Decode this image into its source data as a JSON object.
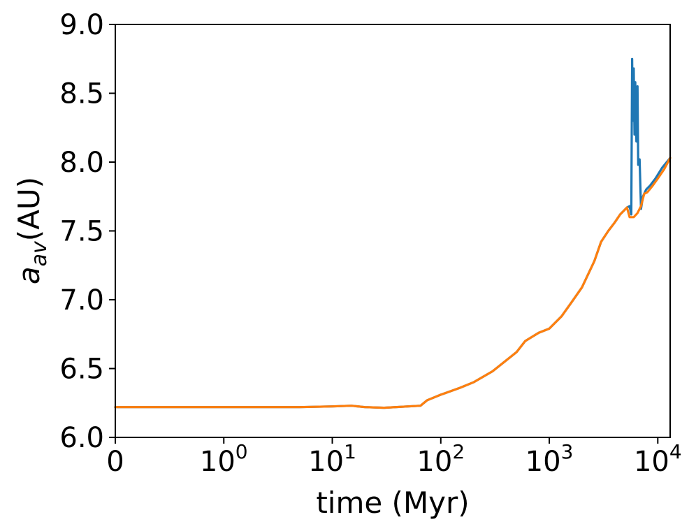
{
  "chart_data": {
    "type": "line",
    "title": "",
    "xlabel": "time (Myr)",
    "ylabel": "a",
    "ylabel_sub": "av",
    "ylabel_unit": "(AU)",
    "x_scale": "symlog",
    "xlim": [
      0,
      13000
    ],
    "ylim": [
      6.0,
      9.0
    ],
    "grid": false,
    "legend": "none",
    "x_ticks": [
      {
        "value": 0,
        "label": "0"
      },
      {
        "value": 1,
        "base": "10",
        "exp": "0"
      },
      {
        "value": 10,
        "base": "10",
        "exp": "1"
      },
      {
        "value": 100,
        "base": "10",
        "exp": "2"
      },
      {
        "value": 1000,
        "base": "10",
        "exp": "3"
      },
      {
        "value": 10000,
        "base": "10",
        "exp": "4"
      }
    ],
    "y_ticks": [
      {
        "value": 6.0,
        "label": "6.0"
      },
      {
        "value": 6.5,
        "label": "6.5"
      },
      {
        "value": 7.0,
        "label": "7.0"
      },
      {
        "value": 7.5,
        "label": "7.5"
      },
      {
        "value": 8.0,
        "label": "8.0"
      },
      {
        "value": 8.5,
        "label": "8.5"
      },
      {
        "value": 9.0,
        "label": "9.0"
      }
    ],
    "series": [
      {
        "color": "#1f77b4",
        "points": [
          [
            0,
            6.22
          ],
          [
            1,
            6.22
          ],
          [
            5,
            6.22
          ],
          [
            10,
            6.225
          ],
          [
            15,
            6.23
          ],
          [
            20,
            6.22
          ],
          [
            30,
            6.215
          ],
          [
            50,
            6.225
          ],
          [
            65,
            6.23
          ],
          [
            75,
            6.27
          ],
          [
            100,
            6.31
          ],
          [
            150,
            6.36
          ],
          [
            200,
            6.4
          ],
          [
            300,
            6.48
          ],
          [
            500,
            6.62
          ],
          [
            600,
            6.7
          ],
          [
            800,
            6.76
          ],
          [
            1000,
            6.79
          ],
          [
            1300,
            6.88
          ],
          [
            1600,
            6.98
          ],
          [
            2000,
            7.09
          ],
          [
            2600,
            7.28
          ],
          [
            3000,
            7.42
          ],
          [
            3500,
            7.5
          ],
          [
            4000,
            7.56
          ],
          [
            4500,
            7.62
          ],
          [
            5200,
            7.67
          ],
          [
            5500,
            7.68
          ],
          [
            5700,
            7.62
          ],
          [
            5800,
            8.75
          ],
          [
            5900,
            8.3
          ],
          [
            6000,
            8.68
          ],
          [
            6100,
            8.2
          ],
          [
            6200,
            8.58
          ],
          [
            6350,
            8.15
          ],
          [
            6500,
            8.55
          ],
          [
            6600,
            7.98
          ],
          [
            6800,
            8.02
          ],
          [
            7000,
            7.66
          ],
          [
            7300,
            7.75
          ],
          [
            7800,
            7.8
          ],
          [
            8500,
            7.83
          ],
          [
            9500,
            7.88
          ],
          [
            11000,
            7.96
          ],
          [
            13000,
            8.03
          ]
        ]
      },
      {
        "color": "#ff7f0e",
        "points": [
          [
            0,
            6.22
          ],
          [
            1,
            6.22
          ],
          [
            5,
            6.22
          ],
          [
            10,
            6.225
          ],
          [
            15,
            6.23
          ],
          [
            20,
            6.22
          ],
          [
            30,
            6.215
          ],
          [
            50,
            6.225
          ],
          [
            65,
            6.23
          ],
          [
            75,
            6.27
          ],
          [
            100,
            6.31
          ],
          [
            150,
            6.36
          ],
          [
            200,
            6.4
          ],
          [
            300,
            6.48
          ],
          [
            500,
            6.62
          ],
          [
            600,
            6.7
          ],
          [
            800,
            6.76
          ],
          [
            1000,
            6.79
          ],
          [
            1300,
            6.88
          ],
          [
            1600,
            6.98
          ],
          [
            2000,
            7.09
          ],
          [
            2600,
            7.28
          ],
          [
            3000,
            7.42
          ],
          [
            3500,
            7.5
          ],
          [
            4000,
            7.56
          ],
          [
            4500,
            7.62
          ],
          [
            5200,
            7.67
          ],
          [
            5500,
            7.6
          ],
          [
            6000,
            7.6
          ],
          [
            6500,
            7.63
          ],
          [
            7000,
            7.68
          ],
          [
            7500,
            7.77
          ],
          [
            8000,
            7.78
          ],
          [
            9000,
            7.83
          ],
          [
            10000,
            7.88
          ],
          [
            11500,
            7.95
          ],
          [
            13000,
            8.03
          ]
        ]
      }
    ]
  }
}
